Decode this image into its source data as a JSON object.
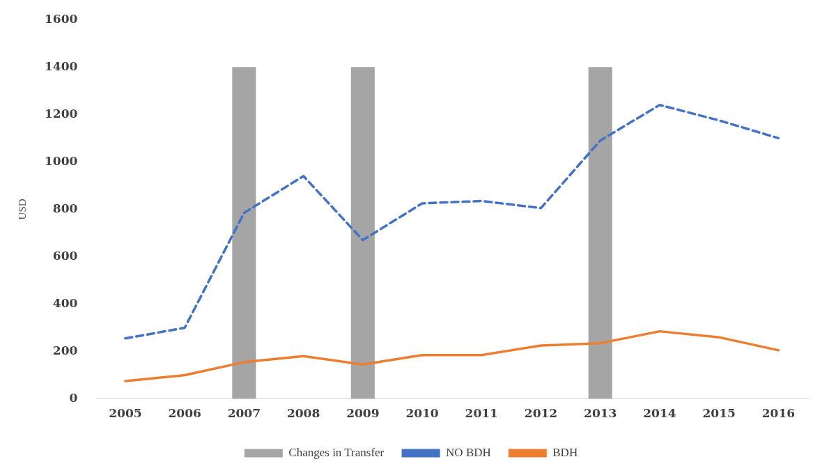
{
  "chart_data": {
    "type": "line",
    "ylabel": "USD",
    "categories": [
      "2005",
      "2006",
      "2007",
      "2008",
      "2009",
      "2010",
      "2011",
      "2012",
      "2013",
      "2014",
      "2015",
      "2016"
    ],
    "ylim": [
      0,
      1600
    ],
    "yticks": [
      0,
      200,
      400,
      600,
      800,
      1000,
      1200,
      1400,
      1600
    ],
    "legend": "bottom",
    "marker": "none",
    "series": [
      {
        "name": "Changes in Transfer",
        "type": "bar",
        "color": "#a5a5a5",
        "values": [
          null,
          null,
          1400,
          null,
          1400,
          null,
          null,
          null,
          1400,
          null,
          null,
          null
        ]
      },
      {
        "name": "NO BDH",
        "line_style": "dashed",
        "color": "#4472c4",
        "values": [
          255,
          300,
          785,
          940,
          670,
          825,
          835,
          805,
          1090,
          1240,
          1175,
          1100
        ]
      },
      {
        "name": "BDH",
        "line_style": "solid",
        "color": "#ed7d31",
        "values": [
          75,
          100,
          155,
          180,
          145,
          185,
          185,
          225,
          235,
          285,
          260,
          205
        ]
      }
    ]
  }
}
